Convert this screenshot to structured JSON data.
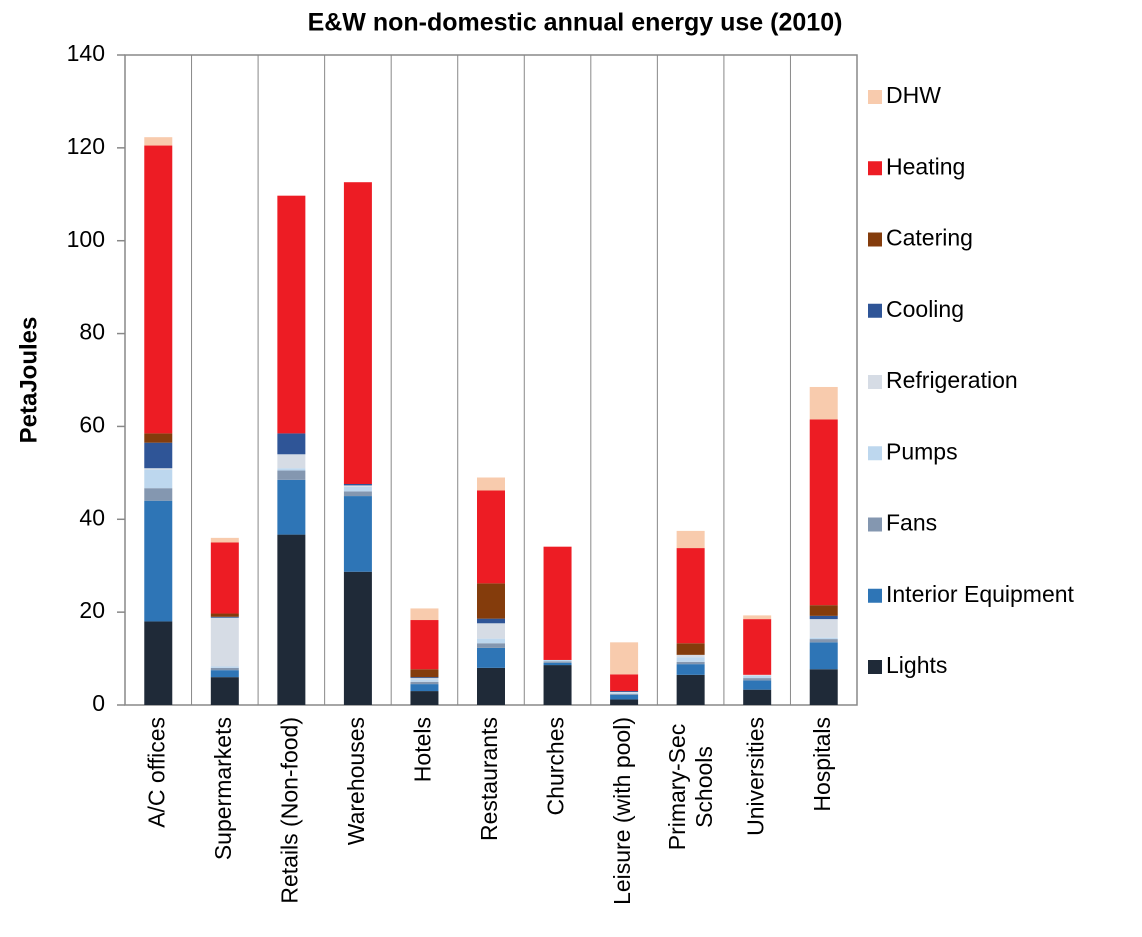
{
  "chart_data": {
    "type": "stacked-bar",
    "title": "E&W non-domestic annual energy use (2010)",
    "y_label": "PetaJoules",
    "categories": [
      "A/C offices",
      "Supermarkets",
      "Retails (Non-food)",
      "Warehouses",
      "Hotels",
      "Restaurants",
      "Churches",
      "Leisure (with pool)",
      "Primary-Sec\nSchools",
      "Universities",
      "Hospitals"
    ],
    "series": [
      {
        "name": "Lights",
        "color": "#1f2a38",
        "values": [
          18,
          6,
          36.7,
          28.7,
          3,
          8,
          8.6,
          1.2,
          6.5,
          3.3,
          7.7
        ]
      },
      {
        "name": "Interior Equipment",
        "color": "#2e75b6",
        "values": [
          26,
          1.5,
          11.8,
          16.3,
          1.5,
          4.3,
          0.5,
          1,
          2.3,
          2,
          5.8
        ]
      },
      {
        "name": "Fans",
        "color": "#8497b0",
        "values": [
          2.7,
          0.5,
          2,
          1,
          0.5,
          1,
          0.3,
          0.2,
          0.5,
          0.5,
          0.7
        ]
      },
      {
        "name": "Pumps",
        "color": "#bdd7ee",
        "values": [
          4,
          0.3,
          0.5,
          1,
          0.5,
          1,
          0.3,
          0.2,
          1,
          0.5,
          0.3
        ]
      },
      {
        "name": "Refrigeration",
        "color": "#d6dce5",
        "values": [
          0.3,
          10.5,
          3,
          0.3,
          0.3,
          3.3,
          0,
          0.2,
          0.5,
          0.2,
          4
        ]
      },
      {
        "name": "Cooling",
        "color": "#2f5597",
        "values": [
          5.5,
          0.2,
          4.5,
          0.3,
          0.2,
          1,
          0,
          0.2,
          0,
          0,
          0.7
        ]
      },
      {
        "name": "Catering",
        "color": "#843c0c",
        "values": [
          2,
          0.7,
          0,
          0,
          1.7,
          7.6,
          0,
          0,
          2.5,
          0,
          2.3
        ]
      },
      {
        "name": "Heating",
        "color": "#ed1c24",
        "values": [
          62,
          15.3,
          51.2,
          65,
          10.6,
          20,
          24.4,
          3.6,
          20.5,
          12,
          40
        ]
      },
      {
        "name": "DHW",
        "color": "#f8cbad",
        "values": [
          1.8,
          1,
          0,
          0,
          2.5,
          2.8,
          0,
          6.9,
          3.7,
          0.8,
          7
        ]
      }
    ],
    "ylim": [
      0,
      140
    ],
    "yticks": [
      0,
      20,
      40,
      60,
      80,
      100,
      120,
      140
    ],
    "grid": false,
    "legend": "right"
  }
}
